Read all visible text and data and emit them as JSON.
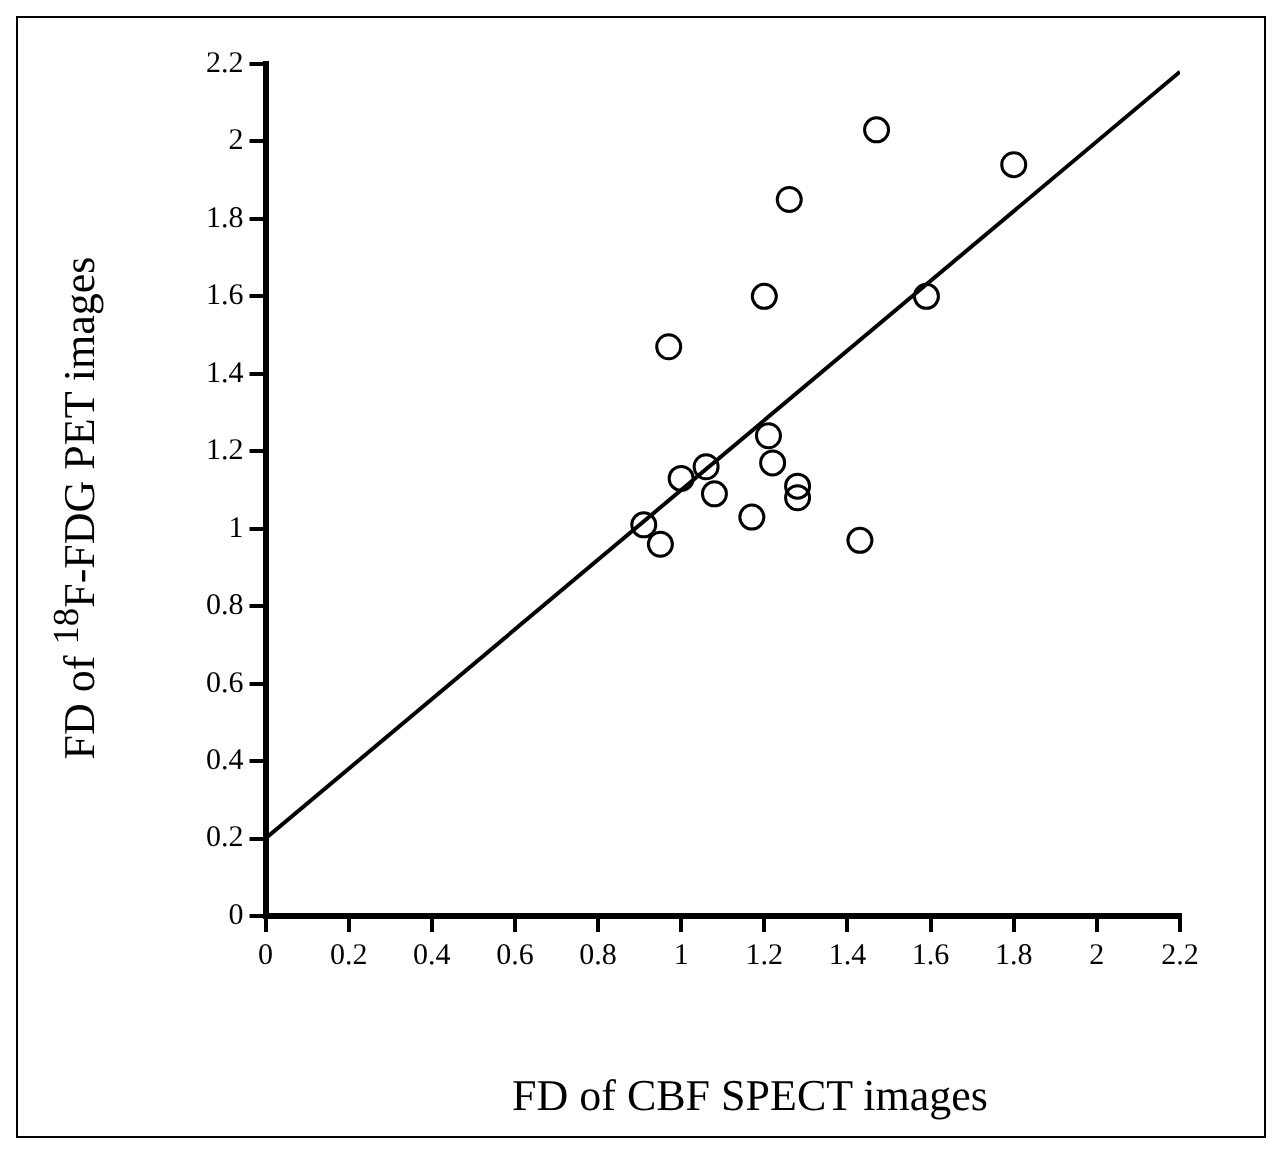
{
  "chart_data": {
    "type": "scatter",
    "xlabel": "FD of CBF SPECT images",
    "ylabel": "FD of $^{18}$F-FDG PET images",
    "xlim": [
      0,
      2.2
    ],
    "ylim": [
      0,
      2.2
    ],
    "xticks": [
      0,
      0.2,
      0.4,
      0.6,
      0.8,
      1,
      1.2,
      1.4,
      1.6,
      1.8,
      2,
      2.2
    ],
    "yticks": [
      0,
      0.2,
      0.4,
      0.6,
      0.8,
      1,
      1.2,
      1.4,
      1.6,
      1.8,
      2,
      2.2
    ],
    "grid": false,
    "legend": false,
    "series": [
      {
        "marker": "circle",
        "color": "#000000",
        "x": [
          0.91,
          0.95,
          0.97,
          1.0,
          1.06,
          1.08,
          1.17,
          1.2,
          1.21,
          1.22,
          1.26,
          1.28,
          1.28,
          1.43,
          1.47,
          1.59,
          1.8
        ],
        "values": [
          1.01,
          0.96,
          1.47,
          1.13,
          1.16,
          1.09,
          1.03,
          1.6,
          1.24,
          1.17,
          1.85,
          1.11,
          1.08,
          0.97,
          2.03,
          1.6,
          1.94
        ]
      },
      {
        "type": "line",
        "marker": "none",
        "color": "#000000",
        "x": [
          0,
          2.2
        ],
        "values": [
          0.2,
          2.18
        ]
      }
    ]
  }
}
